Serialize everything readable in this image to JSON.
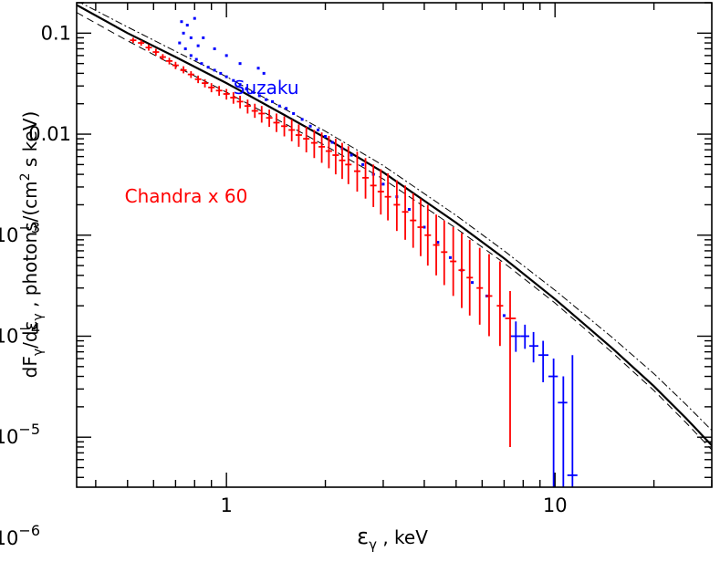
{
  "chart_data": {
    "type": "scatter",
    "title": "",
    "x_scale": "log",
    "y_scale": "log",
    "xlim": [
      0.35,
      30
    ],
    "ylim": [
      3.2e-06,
      0.2
    ],
    "grid": false,
    "x_ticks": [
      {
        "value": 1,
        "label": "1"
      },
      {
        "value": 10,
        "label": "10"
      }
    ],
    "y_ticks": [
      {
        "value": 0.1,
        "label": "0.1"
      },
      {
        "value": 0.01,
        "label": "0.01"
      },
      {
        "value": 0.001,
        "base": "10",
        "exp": "−3"
      },
      {
        "value": 0.0001,
        "base": "10",
        "exp": "−4"
      },
      {
        "value": 1e-05,
        "base": "10",
        "exp": "−5"
      },
      {
        "value": 1e-06,
        "base": "10",
        "exp": "−6"
      }
    ],
    "xlabel": {
      "sym": "ε",
      "sub": "γ",
      "rest": " ,  keV"
    },
    "ylabel": {
      "p1": "dF",
      "s1": "γ",
      "p2": "/dε",
      "s2": "γ",
      "p3": " ,   photons/(cm",
      "sup": "2",
      "p4": " s keV)"
    },
    "annotations": [
      {
        "text": "Suzaku",
        "color": "#0000ff",
        "x": 1.05,
        "y": 0.025
      },
      {
        "text": "Chandra x 60",
        "color": "#ff0000",
        "x": 0.49,
        "y": 0.0021
      }
    ],
    "series": [
      {
        "name": "Suzaku",
        "color": "#0000ff",
        "x": [
          0.72,
          0.75,
          0.78,
          0.81,
          0.84,
          0.88,
          0.92,
          0.96,
          1.0,
          1.05,
          1.1,
          1.15,
          1.2,
          1.26,
          1.32,
          1.38,
          1.45,
          1.52,
          1.6,
          1.7,
          1.8,
          1.9,
          2.0,
          2.1,
          2.25,
          2.4,
          2.6,
          2.8,
          3.0,
          3.3,
          3.6,
          4.0,
          4.4,
          4.8,
          5.2,
          5.6,
          6.2,
          7.0
        ],
        "y": [
          0.08,
          0.07,
          0.06,
          0.055,
          0.05,
          0.046,
          0.043,
          0.04,
          0.037,
          0.034,
          0.031,
          0.028,
          0.026,
          0.024,
          0.022,
          0.021,
          0.019,
          0.018,
          0.016,
          0.014,
          0.012,
          0.011,
          0.0095,
          0.0083,
          0.0072,
          0.0062,
          0.005,
          0.004,
          0.0032,
          0.0024,
          0.0018,
          0.0012,
          0.00085,
          0.0006,
          0.00045,
          0.00034,
          0.00025,
          0.00016
        ]
      },
      {
        "name": "Suzaku high-energy bins",
        "color": "#0000ff",
        "x": [
          7.6,
          8.1,
          8.6,
          9.2,
          9.9,
          10.6,
          11.3
        ],
        "y": [
          0.0001,
          0.0001,
          8e-05,
          6.5e-05,
          4e-05,
          2.2e-05,
          4.2e-06
        ],
        "y_lo": [
          7e-05,
          7.5e-05,
          5.5e-05,
          3.5e-05,
          3e-06,
          3e-06,
          3e-06
        ],
        "y_hi": [
          0.00014,
          0.00013,
          0.00011,
          9e-05,
          6e-05,
          4e-05,
          6.5e-05
        ],
        "x_lo": [
          7.3,
          7.85,
          8.35,
          8.9,
          9.55,
          10.2,
          10.9
        ],
        "x_hi": [
          7.85,
          8.35,
          8.9,
          9.55,
          10.2,
          10.9,
          11.7
        ]
      },
      {
        "name": "Suzaku outliers",
        "color": "#0000ff",
        "x": [
          0.73,
          0.76,
          0.8,
          0.74,
          0.78,
          0.85,
          0.92,
          1.0,
          1.1,
          1.25,
          1.3,
          0.82
        ],
        "y": [
          0.13,
          0.12,
          0.14,
          0.1,
          0.09,
          0.09,
          0.07,
          0.06,
          0.05,
          0.045,
          0.04,
          0.075
        ]
      },
      {
        "name": "Chandra x 60",
        "color": "#ff0000",
        "x": [
          0.52,
          0.55,
          0.58,
          0.61,
          0.64,
          0.67,
          0.7,
          0.74,
          0.78,
          0.82,
          0.86,
          0.9,
          0.95,
          1.0,
          1.05,
          1.1,
          1.16,
          1.22,
          1.28,
          1.35,
          1.42,
          1.5,
          1.58,
          1.66,
          1.75,
          1.85,
          1.95,
          2.05,
          2.15,
          2.25,
          2.35,
          2.5,
          2.65,
          2.8,
          2.95,
          3.1,
          3.3,
          3.5,
          3.7,
          3.9,
          4.1,
          4.35,
          4.6,
          4.9,
          5.2,
          5.5,
          5.9,
          6.3,
          6.8
        ],
        "y": [
          0.085,
          0.08,
          0.072,
          0.065,
          0.058,
          0.053,
          0.048,
          0.043,
          0.039,
          0.035,
          0.032,
          0.029,
          0.027,
          0.025,
          0.023,
          0.021,
          0.019,
          0.017,
          0.016,
          0.0145,
          0.013,
          0.012,
          0.011,
          0.0098,
          0.009,
          0.0082,
          0.0075,
          0.0068,
          0.0062,
          0.0055,
          0.005,
          0.0043,
          0.0037,
          0.0031,
          0.0027,
          0.0024,
          0.002,
          0.0017,
          0.0014,
          0.0012,
          0.001,
          0.0008,
          0.00068,
          0.00055,
          0.00045,
          0.00038,
          0.0003,
          0.00025,
          0.0002
        ],
        "y_lo": [
          0.08,
          0.075,
          0.067,
          0.06,
          0.054,
          0.049,
          0.044,
          0.04,
          0.036,
          0.032,
          0.029,
          0.026,
          0.024,
          0.022,
          0.02,
          0.018,
          0.016,
          0.0145,
          0.013,
          0.0118,
          0.0105,
          0.0095,
          0.0085,
          0.0075,
          0.0066,
          0.0058,
          0.0052,
          0.0046,
          0.004,
          0.0036,
          0.0032,
          0.0027,
          0.0023,
          0.0019,
          0.0016,
          0.0014,
          0.0011,
          0.0009,
          0.00075,
          0.00062,
          0.0005,
          0.0004,
          0.00032,
          0.00025,
          0.00019,
          0.00016,
          0.00013,
          0.0001,
          8e-05
        ],
        "y_hi": [
          0.09,
          0.085,
          0.077,
          0.07,
          0.062,
          0.057,
          0.052,
          0.047,
          0.042,
          0.038,
          0.035,
          0.032,
          0.03,
          0.028,
          0.026,
          0.024,
          0.022,
          0.02,
          0.019,
          0.0175,
          0.016,
          0.015,
          0.014,
          0.0125,
          0.0118,
          0.011,
          0.0104,
          0.0096,
          0.009,
          0.0082,
          0.0076,
          0.0067,
          0.0058,
          0.005,
          0.0045,
          0.0041,
          0.0035,
          0.0031,
          0.0026,
          0.0023,
          0.002,
          0.0016,
          0.0014,
          0.0012,
          0.00105,
          0.0009,
          0.00075,
          0.00065,
          0.00055
        ]
      },
      {
        "name": "Chandra last bin",
        "color": "#ff0000",
        "x": [
          7.3
        ],
        "y": [
          0.00015
        ],
        "y_lo": [
          8e-06
        ],
        "y_hi": [
          0.00028
        ],
        "x_lo": [
          7.05
        ],
        "x_hi": [
          7.6
        ]
      },
      {
        "name": "model",
        "kind": "curve",
        "style": "solid",
        "color": "#000000",
        "x": [
          0.35,
          0.5,
          0.7,
          1.0,
          1.5,
          2.0,
          3.0,
          5.0,
          7.0,
          10.0,
          15.0,
          20.0,
          25.0,
          30.0
        ],
        "y": [
          0.19,
          0.1,
          0.058,
          0.032,
          0.0155,
          0.0092,
          0.0042,
          0.00133,
          0.00059,
          0.000233,
          7.5e-05,
          3.2e-05,
          1.55e-05,
          8.3e-06
        ]
      },
      {
        "name": "model lower",
        "kind": "curve",
        "style": "dashed",
        "color": "#000000",
        "x": [
          0.35,
          0.5,
          0.7,
          1.0,
          1.5,
          2.0,
          3.0,
          5.0,
          7.0,
          10.0,
          15.0,
          20.0,
          25.0,
          30.0
        ],
        "y": [
          0.16,
          0.084,
          0.047,
          0.026,
          0.0128,
          0.0077,
          0.0036,
          0.00117,
          0.00053,
          0.000213,
          6.8e-05,
          2.9e-05,
          1.4e-05,
          7.5e-06
        ]
      },
      {
        "name": "model upper",
        "kind": "curve",
        "style": "dashdot",
        "color": "#000000",
        "x": [
          0.35,
          0.5,
          0.7,
          1.0,
          1.5,
          2.0,
          3.0,
          5.0,
          7.0,
          10.0,
          15.0,
          20.0,
          25.0,
          30.0
        ],
        "y": [
          0.21,
          0.115,
          0.066,
          0.037,
          0.0178,
          0.0107,
          0.0049,
          0.00157,
          0.0007,
          0.000285,
          9.6e-05,
          4.25e-05,
          2.12e-05,
          1.17e-05
        ]
      }
    ]
  }
}
